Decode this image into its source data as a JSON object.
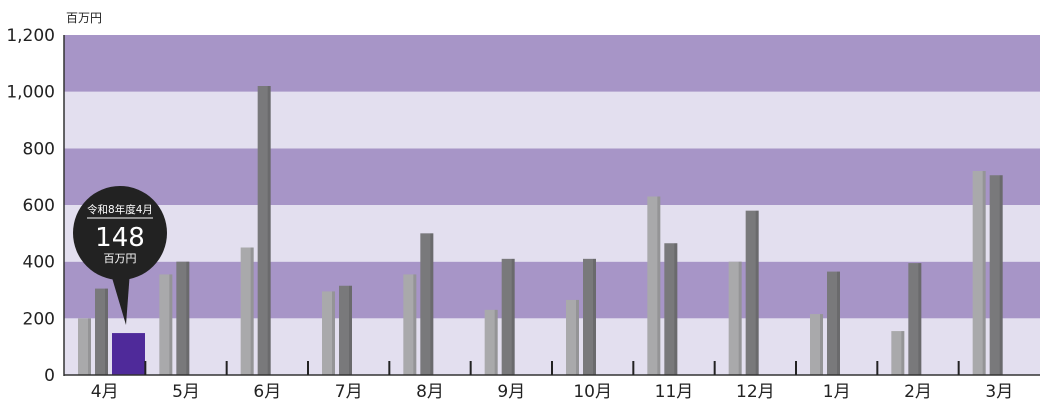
{
  "chart_data": {
    "type": "bar",
    "unit": "百万円",
    "ylim": [
      0,
      1200
    ],
    "yticks": [
      "0",
      "200",
      "400",
      "600",
      "800",
      "1,000",
      "1,200"
    ],
    "ytick_values": [
      0,
      200,
      400,
      600,
      800,
      1000,
      1200
    ],
    "categories": [
      "4月",
      "5月",
      "6月",
      "7月",
      "8月",
      "9月",
      "10月",
      "11月",
      "12月",
      "1月",
      "2月",
      "3月"
    ],
    "series": [
      {
        "values": [
          200,
          355,
          450,
          295,
          355,
          230,
          265,
          630,
          400,
          215,
          155,
          720
        ],
        "color": "#a9a9ab"
      },
      {
        "values": [
          305,
          400,
          1020,
          315,
          500,
          410,
          410,
          465,
          580,
          365,
          395,
          705
        ],
        "color": "#79797b"
      },
      {
        "values": [
          148,
          null,
          null,
          null,
          null,
          null,
          null,
          null,
          null,
          null,
          null,
          null
        ],
        "color": "#4f2a9a"
      }
    ],
    "bands": {
      "dark": "#a795c7",
      "light": "#e3dfef"
    },
    "callout": {
      "label": "令和8年度4月",
      "value": "148",
      "unit": "百万円",
      "category_index": 0
    },
    "grid": true,
    "legend": "none"
  }
}
